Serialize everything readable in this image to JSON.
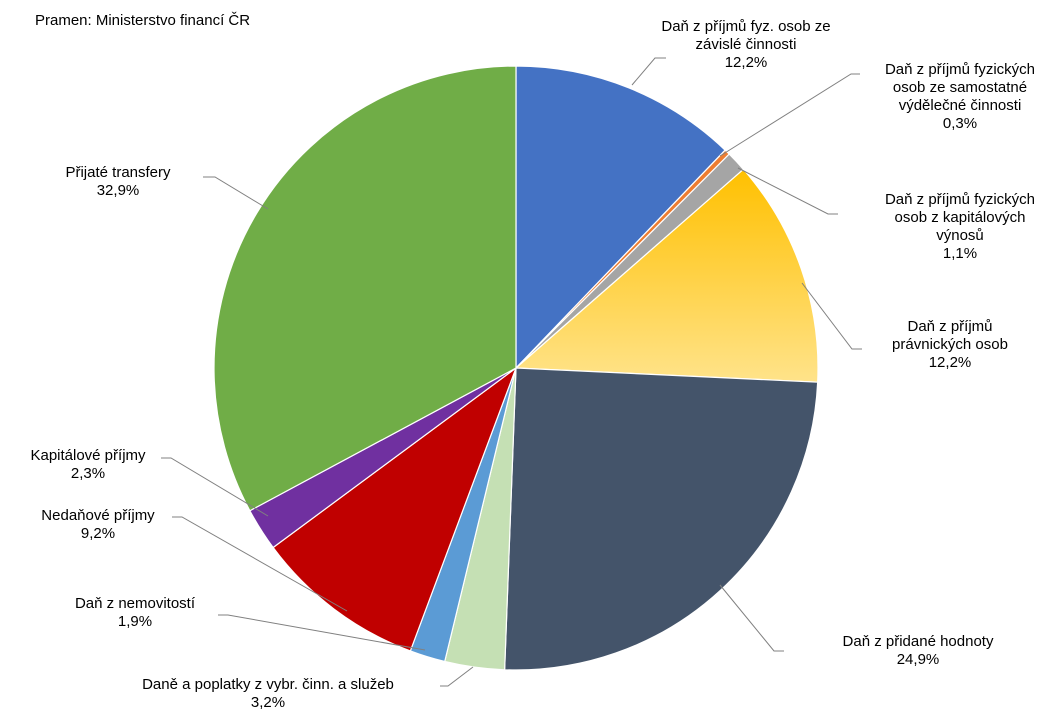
{
  "source_note": "Pramen: Ministerstvo financí ČR",
  "chart_data": {
    "type": "pie",
    "start_angle_deg": 0,
    "direction": "clockwise",
    "slices": [
      {
        "label_lines": [
          "Daň z příjmů fyz. osob ze",
          "závislé činnosti"
        ],
        "value_text": "12,2%",
        "value": 12.2,
        "color": "#4472C4"
      },
      {
        "label_lines": [
          "Daň z příjmů fyzických",
          "osob ze samostatné",
          "výdělečné činnosti"
        ],
        "value_text": "0,3%",
        "value": 0.3,
        "color": "#ED7D31"
      },
      {
        "label_lines": [
          "Daň z příjmů fyzických",
          "osob z kapitálových",
          "výnosů"
        ],
        "value_text": "1,1%",
        "value": 1.1,
        "color": "#A5A5A5"
      },
      {
        "label_lines": [
          "Daň z příjmů",
          "právnických osob"
        ],
        "value_text": "12,2%",
        "value": 12.2,
        "color": "#FFC000",
        "gradient_to": "#FFE38A"
      },
      {
        "label_lines": [
          "Daň z přidané hodnoty"
        ],
        "value_text": "24,9%",
        "value": 24.9,
        "color": "#44546A"
      },
      {
        "label_lines": [
          "Daně a poplatky z vybr. činn. a služeb"
        ],
        "value_text": "3,2%",
        "value": 3.2,
        "color": "#C5E0B4"
      },
      {
        "label_lines": [
          "Daň z nemovitostí"
        ],
        "value_text": "1,9%",
        "value": 1.9,
        "color": "#5B9BD5"
      },
      {
        "label_lines": [
          "Nedaňové příjmy"
        ],
        "value_text": "9,2%",
        "value": 9.2,
        "color": "#C00000"
      },
      {
        "label_lines": [
          "Kapitálové příjmy"
        ],
        "value_text": "2,3%",
        "value": 2.3,
        "color": "#7030A0"
      },
      {
        "label_lines": [
          "Přijaté transfery"
        ],
        "value_text": "32,9%",
        "value": 32.9,
        "color": "#70AD47"
      }
    ]
  }
}
